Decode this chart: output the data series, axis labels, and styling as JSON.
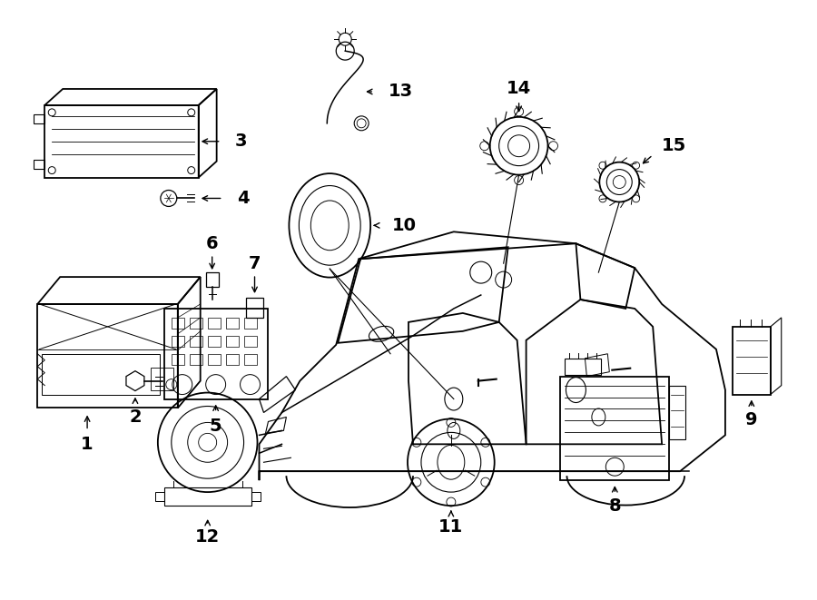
{
  "title": "",
  "bg_color": "#ffffff",
  "line_color": "#000000",
  "fig_width": 9.0,
  "fig_height": 6.61,
  "label_fontsize": 14
}
